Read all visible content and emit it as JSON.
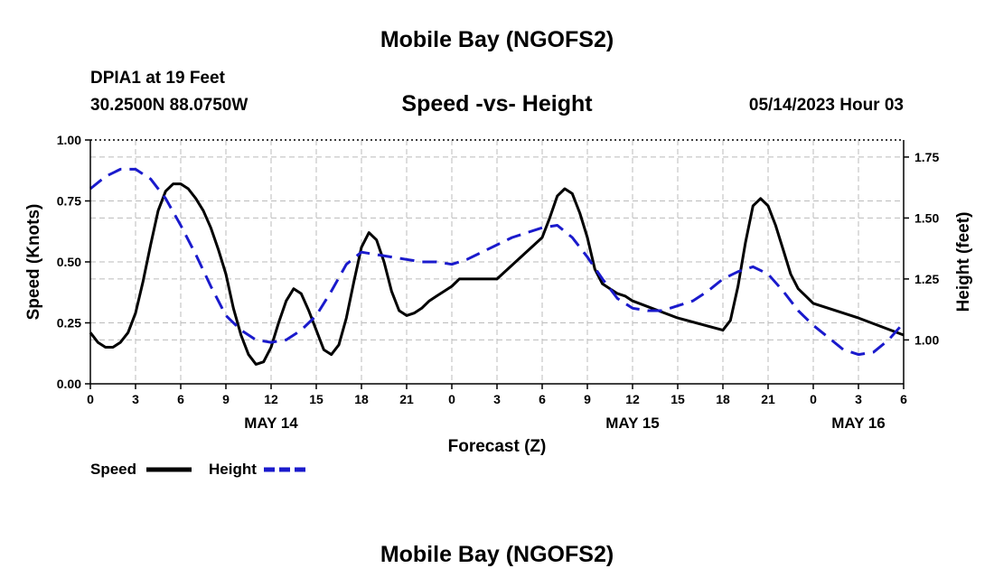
{
  "header": {
    "title": "Mobile Bay (NGOFS2)",
    "station": "DPIA1 at 19 Feet",
    "coords": "30.2500N  88.0750W",
    "subtitle": "Speed -vs- Height",
    "datetime": "05/14/2023 Hour 03",
    "footer_title": "Mobile Bay (NGOFS2)"
  },
  "chart_data": {
    "type": "line",
    "title": "Speed -vs- Height",
    "xlabel": "Forecast (Z)",
    "ylabel": "Speed (Knots)",
    "y2label": "Height (feet)",
    "xlim": [
      0,
      54
    ],
    "ylim": [
      0,
      1.0
    ],
    "y2lim": [
      0.82,
      1.82
    ],
    "x_ticks": [
      0,
      3,
      6,
      9,
      12,
      15,
      18,
      21,
      24,
      27,
      30,
      33,
      36,
      39,
      42,
      45,
      48,
      51,
      54
    ],
    "x_tick_labels": [
      "0",
      "3",
      "6",
      "9",
      "12",
      "15",
      "18",
      "21",
      "0",
      "3",
      "6",
      "9",
      "12",
      "15",
      "18",
      "21",
      "0",
      "3",
      "6"
    ],
    "y_ticks": [
      0,
      0.25,
      0.5,
      0.75,
      1.0
    ],
    "y_tick_labels": [
      "0.00",
      "0.25",
      "0.50",
      "0.75",
      "1.00"
    ],
    "y2_ticks": [
      1.0,
      1.25,
      1.5,
      1.75
    ],
    "y2_tick_labels": [
      "1.00",
      "1.25",
      "1.50",
      "1.75"
    ],
    "day_labels": [
      {
        "label": "MAY 14",
        "x": 12
      },
      {
        "label": "MAY 15",
        "x": 36
      },
      {
        "label": "MAY 16",
        "x": 51
      }
    ],
    "grid": true,
    "legend": [
      {
        "name": "Speed",
        "color": "#000000",
        "dash": "solid"
      },
      {
        "name": "Height",
        "color": "#1a1acc",
        "dash": "dashed"
      }
    ],
    "series": [
      {
        "name": "Speed",
        "axis": "left",
        "color": "#000000",
        "x": [
          0,
          0.5,
          1,
          1.5,
          2,
          2.5,
          3,
          3.5,
          4,
          4.5,
          5,
          5.5,
          6,
          6.5,
          7,
          7.5,
          8,
          8.5,
          9,
          9.5,
          10,
          10.5,
          11,
          11.5,
          12,
          12.5,
          13,
          13.5,
          14,
          14.5,
          15,
          15.5,
          16,
          16.5,
          17,
          17.5,
          18,
          18.5,
          19,
          19.5,
          20,
          20.5,
          21,
          21.5,
          22,
          22.5,
          23,
          23.5,
          24,
          24.5,
          27,
          30,
          30.5,
          31,
          31.5,
          32,
          32.5,
          33,
          33.5,
          34,
          34.5,
          35,
          35.5,
          36,
          39,
          42,
          42.5,
          43,
          43.5,
          44,
          44.5,
          45,
          45.5,
          46,
          46.5,
          47,
          47.5,
          48,
          51,
          54
        ],
        "values": [
          0.21,
          0.17,
          0.15,
          0.15,
          0.17,
          0.21,
          0.29,
          0.42,
          0.57,
          0.71,
          0.79,
          0.82,
          0.82,
          0.8,
          0.76,
          0.71,
          0.64,
          0.55,
          0.45,
          0.31,
          0.2,
          0.12,
          0.08,
          0.09,
          0.15,
          0.25,
          0.34,
          0.39,
          0.37,
          0.3,
          0.22,
          0.14,
          0.12,
          0.16,
          0.27,
          0.42,
          0.56,
          0.62,
          0.59,
          0.5,
          0.38,
          0.3,
          0.28,
          0.29,
          0.31,
          0.34,
          0.36,
          0.38,
          0.4,
          0.43,
          0.43,
          0.6,
          0.68,
          0.77,
          0.8,
          0.78,
          0.7,
          0.6,
          0.47,
          0.41,
          0.39,
          0.37,
          0.36,
          0.34,
          0.27,
          0.22,
          0.26,
          0.4,
          0.58,
          0.73,
          0.76,
          0.73,
          0.65,
          0.55,
          0.45,
          0.39,
          0.36,
          0.33,
          0.27,
          0.2
        ]
      },
      {
        "name": "Height",
        "axis": "right",
        "color": "#1a1acc",
        "x": [
          0,
          1,
          2,
          3,
          4,
          5,
          6,
          7,
          8,
          9,
          10,
          11,
          12,
          13,
          14,
          15,
          16,
          17,
          18,
          19,
          20,
          21,
          22,
          23,
          24,
          25,
          26,
          27,
          28,
          29,
          30,
          31,
          32,
          33,
          34,
          35,
          36,
          37,
          38,
          39,
          40,
          41,
          42,
          43,
          44,
          45,
          46,
          47,
          48,
          49,
          50,
          51,
          52,
          53,
          54
        ],
        "values": [
          1.62,
          1.67,
          1.7,
          1.7,
          1.66,
          1.58,
          1.47,
          1.35,
          1.22,
          1.1,
          1.04,
          1.0,
          0.99,
          1.0,
          1.04,
          1.1,
          1.2,
          1.31,
          1.36,
          1.35,
          1.34,
          1.33,
          1.32,
          1.32,
          1.31,
          1.33,
          1.36,
          1.39,
          1.42,
          1.44,
          1.46,
          1.47,
          1.42,
          1.34,
          1.25,
          1.17,
          1.13,
          1.12,
          1.12,
          1.14,
          1.16,
          1.2,
          1.25,
          1.28,
          1.3,
          1.27,
          1.2,
          1.12,
          1.06,
          1.01,
          0.96,
          0.94,
          0.95,
          1.0,
          1.07
        ]
      }
    ]
  }
}
